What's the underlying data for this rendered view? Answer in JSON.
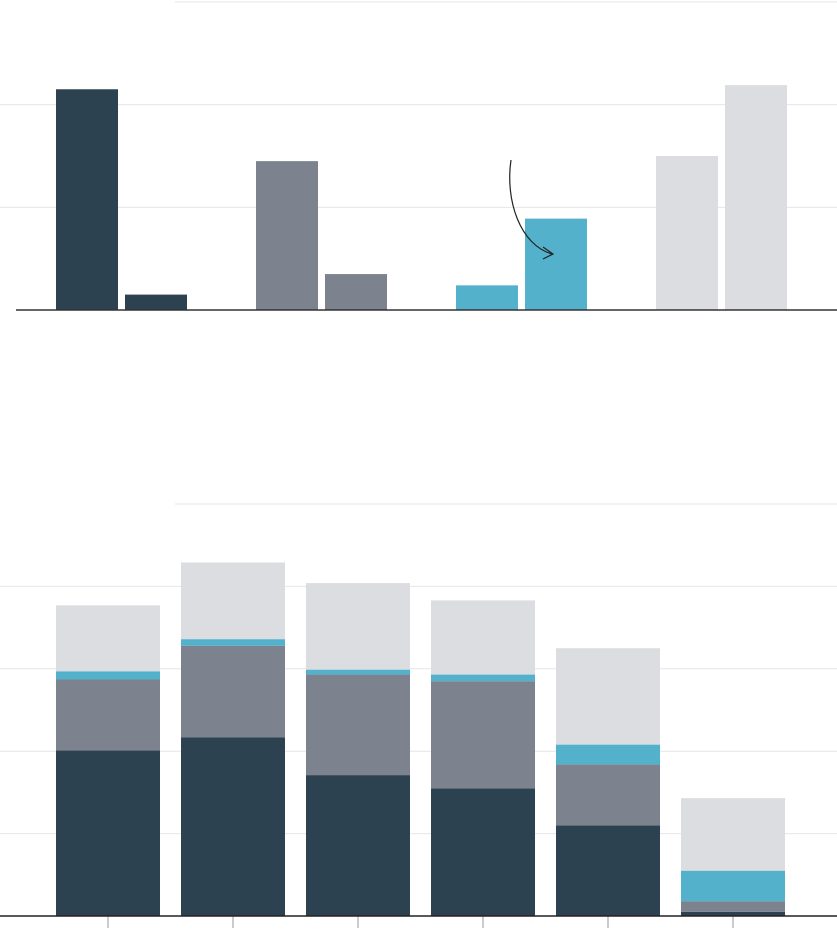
{
  "colors": {
    "dark": "#2c4250",
    "gray": "#7c838f",
    "blue": "#53b1cb",
    "light": "#dcdde0",
    "grid": "#e6e6e6",
    "axis": "#333333"
  },
  "chart_data": [
    {
      "type": "bar",
      "grouped": true,
      "ylim": [
        0,
        3
      ],
      "grid": true,
      "groups": [
        {
          "color_key": "dark",
          "values": [
            2.15,
            0.15
          ]
        },
        {
          "color_key": "gray",
          "values": [
            1.45,
            0.35
          ]
        },
        {
          "color_key": "blue",
          "values": [
            0.24,
            0.89
          ]
        },
        {
          "color_key": "light",
          "values": [
            1.5,
            2.19
          ]
        }
      ],
      "annotation": {
        "type": "curved-arrow",
        "points_to_group": 2,
        "points_to_bar": 1
      }
    },
    {
      "type": "bar",
      "stacked": true,
      "ylim": [
        0,
        5
      ],
      "grid": true,
      "series": [
        {
          "color_key": "dark",
          "values": [
            2.01,
            2.17,
            1.71,
            1.55,
            1.1,
            0.05
          ]
        },
        {
          "color_key": "gray",
          "values": [
            0.86,
            1.11,
            1.22,
            1.3,
            0.74,
            0.13
          ]
        },
        {
          "color_key": "blue",
          "values": [
            0.1,
            0.08,
            0.06,
            0.08,
            0.24,
            0.37
          ]
        },
        {
          "color_key": "light",
          "values": [
            0.8,
            0.93,
            1.05,
            0.9,
            1.17,
            0.88
          ]
        }
      ]
    }
  ]
}
